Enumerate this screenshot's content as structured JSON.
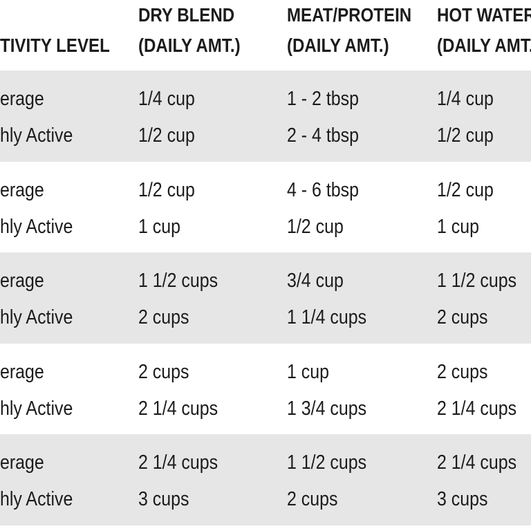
{
  "table": {
    "header": [
      [
        "TIVITY LEVEL"
      ],
      [
        "DRY BLEND",
        "(DAILY AMT.)"
      ],
      [
        "MEAT/PROTEIN",
        "(DAILY AMT.)"
      ],
      [
        "HOT WATER",
        "(DAILY AMT.)"
      ]
    ],
    "groups": [
      [
        [
          "erage",
          "1/4 cup",
          "1 - 2 tbsp",
          "1/4 cup"
        ],
        [
          "hly Active",
          "1/2 cup",
          "2 - 4 tbsp",
          "1/2 cup"
        ]
      ],
      [
        [
          "erage",
          "1/2 cup",
          "4 - 6 tbsp",
          "1/2 cup"
        ],
        [
          "hly Active",
          "1 cup",
          "1/2 cup",
          "1 cup"
        ]
      ],
      [
        [
          "erage",
          "1 1/2 cups",
          "3/4 cup",
          "1 1/2 cups"
        ],
        [
          "hly Active",
          "2 cups",
          "1 1/4 cups",
          "2 cups"
        ]
      ],
      [
        [
          "erage",
          "2 cups",
          "1 cup",
          "2 cups"
        ],
        [
          "hly Active",
          "2 1/4 cups",
          "1 3/4 cups",
          "2 1/4 cups"
        ]
      ],
      [
        [
          "erage",
          "2 1/4 cups",
          "1 1/2 cups",
          "2 1/4 cups"
        ],
        [
          "hly Active",
          "3 cups",
          "2 cups",
          "3 cups"
        ]
      ]
    ]
  }
}
